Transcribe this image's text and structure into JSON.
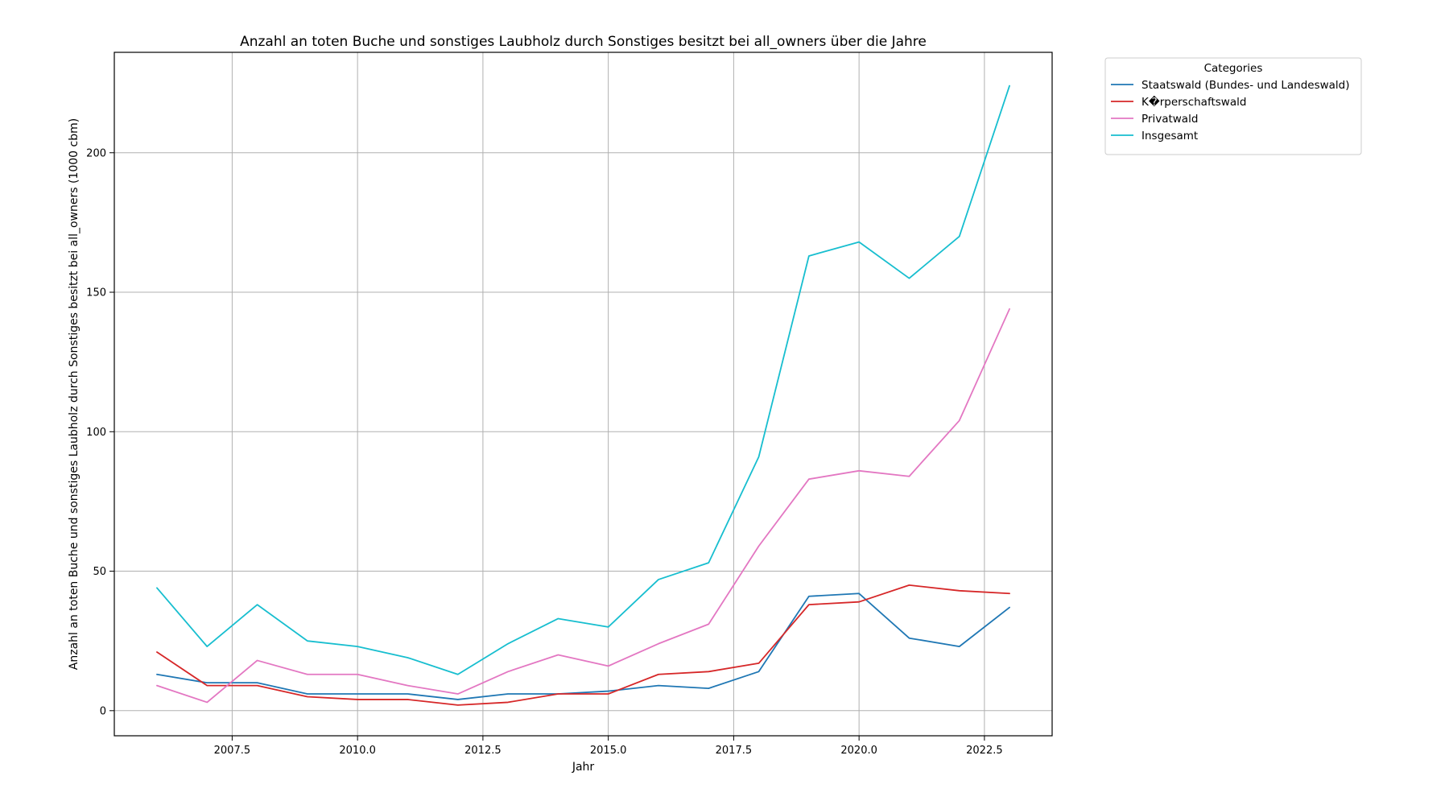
{
  "chart_data": {
    "type": "line",
    "title": "Anzahl an toten Buche und sonstiges Laubholz durch Sonstiges besitzt bei all_owners über die Jahre",
    "xlabel": "Jahr",
    "ylabel": "Anzahl an toten Buche und sonstiges Laubholz durch Sonstiges besitzt bei all_owners (1000 cbm)",
    "xlim": [
      2005.15,
      2023.85
    ],
    "ylim": [
      -9,
      236
    ],
    "xticks": [
      2007.5,
      2010.0,
      2012.5,
      2015.0,
      2017.5,
      2020.0,
      2022.5
    ],
    "xtick_labels": [
      "2007.5",
      "2010.0",
      "2012.5",
      "2015.0",
      "2017.5",
      "2020.0",
      "2022.5"
    ],
    "yticks": [
      0,
      50,
      100,
      150,
      200
    ],
    "ytick_labels": [
      "0",
      "50",
      "100",
      "150",
      "200"
    ],
    "grid": true,
    "legend": {
      "title": "Categories",
      "placement": "outside-top-right"
    },
    "x": [
      2006,
      2007,
      2008,
      2009,
      2010,
      2011,
      2012,
      2013,
      2014,
      2015,
      2016,
      2017,
      2018,
      2019,
      2020,
      2021,
      2022,
      2023
    ],
    "series": [
      {
        "name": "Staatswald (Bundes- und Landeswald)",
        "color": "#1f77b4",
        "values": [
          13,
          10,
          10,
          6,
          6,
          6,
          4,
          6,
          6,
          7,
          9,
          8,
          14,
          41,
          42,
          26,
          23,
          37
        ]
      },
      {
        "name": "K�rperschaftswald",
        "color": "#d62728",
        "values": [
          21,
          9,
          9,
          5,
          4,
          4,
          2,
          3,
          6,
          6,
          13,
          14,
          17,
          38,
          39,
          45,
          43,
          42
        ]
      },
      {
        "name": "Privatwald",
        "color": "#e377c2",
        "values": [
          9,
          3,
          18,
          13,
          13,
          9,
          6,
          14,
          20,
          16,
          24,
          31,
          59,
          83,
          86,
          84,
          104,
          144
        ]
      },
      {
        "name": "Insgesamt",
        "color": "#17becf",
        "values": [
          44,
          23,
          38,
          25,
          23,
          19,
          13,
          24,
          33,
          30,
          47,
          53,
          91,
          163,
          168,
          155,
          170,
          224
        ]
      }
    ]
  }
}
